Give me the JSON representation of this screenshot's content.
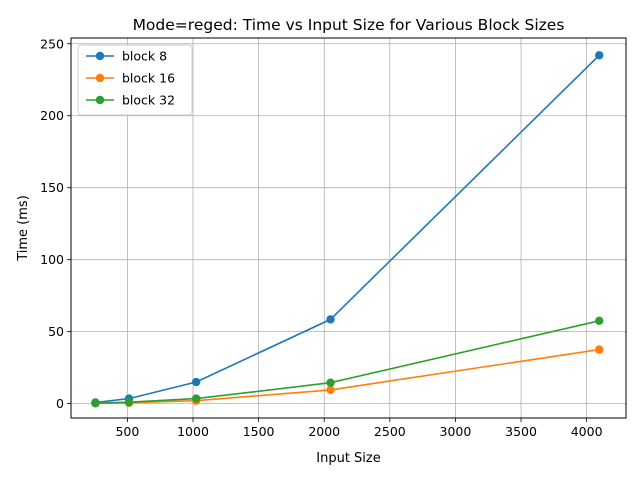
{
  "chart_data": {
    "type": "line",
    "title": "Mode=reged: Time vs Input Size for Various Block Sizes",
    "xlabel": "Input Size",
    "ylabel": "Time (ms)",
    "xlim": [
      70,
      4300
    ],
    "ylim": [
      -10,
      254
    ],
    "xticks": [
      500,
      1000,
      1500,
      2000,
      2500,
      3000,
      3500,
      4000
    ],
    "yticks": [
      0,
      50,
      100,
      150,
      200,
      250
    ],
    "grid": true,
    "legend_position": "top-left",
    "x": [
      256,
      512,
      1024,
      2048,
      4096
    ],
    "series": [
      {
        "name": "block 8",
        "color": "#1f77b4",
        "values": [
          0.8,
          3.5,
          15.0,
          58.5,
          242.0
        ]
      },
      {
        "name": "block 16",
        "color": "#ff7f0e",
        "values": [
          0.2,
          0.6,
          2.0,
          9.5,
          37.5
        ]
      },
      {
        "name": "block 32",
        "color": "#2ca02c",
        "values": [
          0.3,
          1.0,
          3.5,
          14.5,
          57.5
        ]
      }
    ]
  }
}
